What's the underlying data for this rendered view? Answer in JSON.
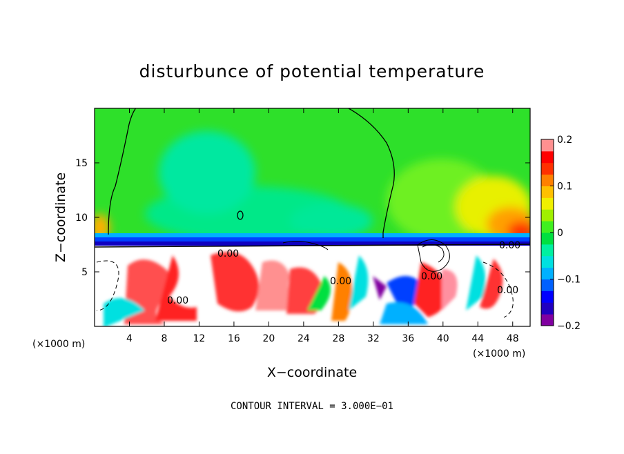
{
  "chart_data": {
    "type": "heatmap",
    "title": "disturbunce of potential temperature",
    "xlabel": "X−coordinate",
    "ylabel": "Z−coordinate",
    "x_unit": "(×1000 m)",
    "y_unit": "(×1000 m)",
    "xlim": [
      0,
      50
    ],
    "ylim": [
      0,
      20
    ],
    "x_ticks": [
      4,
      8,
      12,
      16,
      20,
      24,
      28,
      32,
      36,
      40,
      44,
      48
    ],
    "y_ticks": [
      5,
      10,
      15
    ],
    "colorbar": {
      "ticks": [
        0.2,
        0.1,
        0,
        -0.1,
        -0.2
      ],
      "tick_labels": [
        "0.2",
        "0.1",
        "0",
        "−0.1",
        "−0.2"
      ],
      "range": [
        -0.2,
        0.2
      ],
      "colors": [
        "#8000a0",
        "#2000c0",
        "#0000ff",
        "#0060ff",
        "#00b0ff",
        "#00e0e0",
        "#00f0a0",
        "#00e040",
        "#40f020",
        "#a0f000",
        "#f0f000",
        "#ffc000",
        "#ff8000",
        "#ff3000",
        "#ff0000",
        "#ff9090"
      ]
    },
    "contour_labels": [
      "0.00",
      "0.00",
      "0.00",
      "0.00",
      "0.00",
      "0.00"
    ],
    "footer": "CONTOUR INTERVAL = 3.000E−01"
  }
}
